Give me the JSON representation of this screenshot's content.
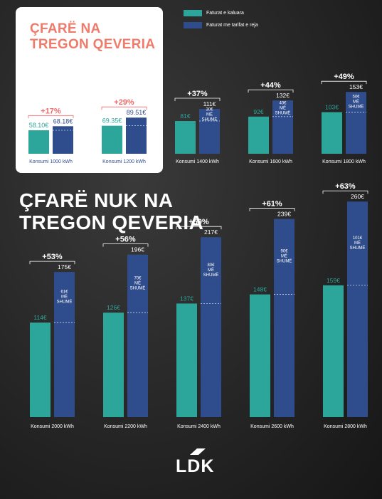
{
  "top_title": "ÇFARË NA TREGON QEVERIA",
  "bottom_title": "ÇFARË NUK NA TREGON QEVERIA",
  "logo_text": "LDK",
  "colors": {
    "teal": "#2ca69a",
    "blue": "#2f4d8c",
    "card": "#ffffff",
    "title_red": "#ef7b6b",
    "pct_red": "#ee6a6a"
  },
  "chart_data": {
    "type": "bar",
    "legend_placement": "top",
    "series": [
      {
        "name": "Faturat e kaluara",
        "color": "#2ca69a"
      },
      {
        "name": "Faturat me tarifat e reja",
        "color": "#2f4d8c"
      }
    ],
    "groups": [
      {
        "category": "Konsumi 1000 kWh",
        "old": 58.1,
        "new": 68.18,
        "old_label": "58.10€",
        "new_label": "68.18€",
        "increase": "+17%",
        "diff_label": "",
        "panel": "top"
      },
      {
        "category": "Konsumi 1200 kWh",
        "old": 69.35,
        "new": 89.51,
        "old_label": "69.35€",
        "new_label": "89.51€",
        "increase": "+29%",
        "diff_label": "",
        "panel": "top"
      },
      {
        "category": "Konsumi 1400 kWh",
        "old": 81,
        "new": 111,
        "old_label": "81€",
        "new_label": "111€",
        "increase": "+37%",
        "diff_label": "30€\nMË\nSHUMË",
        "panel": "top"
      },
      {
        "category": "Konsumi 1600 kWh",
        "old": 92,
        "new": 132,
        "old_label": "92€",
        "new_label": "132€",
        "increase": "+44%",
        "diff_label": "40€\nMË\nSHUMË",
        "panel": "top"
      },
      {
        "category": "Konsumi 1800 kWh",
        "old": 103,
        "new": 153,
        "old_label": "103€",
        "new_label": "153€",
        "increase": "+49%",
        "diff_label": "50€\nMË\nSHUMË",
        "panel": "top"
      },
      {
        "category": "Konsumi 2000 kWh",
        "old": 114,
        "new": 175,
        "old_label": "114€",
        "new_label": "175€",
        "increase": "+53%",
        "diff_label": "61€\nMË\nSHUMË",
        "panel": "bottom"
      },
      {
        "category": "Konsumi 2200 kWh",
        "old": 126,
        "new": 196,
        "old_label": "126€",
        "new_label": "196€",
        "increase": "+56%",
        "diff_label": "70€\nMË\nSHUMË",
        "panel": "bottom"
      },
      {
        "category": "Konsumi 2400 kWh",
        "old": 137,
        "new": 217,
        "old_label": "137€",
        "new_label": "217€",
        "increase": "+59%",
        "diff_label": "80€\nMË\nSHUMË",
        "panel": "bottom"
      },
      {
        "category": "Konsumi 2600 kWh",
        "old": 148,
        "new": 239,
        "old_label": "148€",
        "new_label": "239€",
        "increase": "+61%",
        "diff_label": "90€\nMË\nSHUMË",
        "panel": "bottom"
      },
      {
        "category": "Konsumi 2800 kWh",
        "old": 159,
        "new": 260,
        "old_label": "159€",
        "new_label": "260€",
        "increase": "+63%",
        "diff_label": "101€\nMË\nSHUMË",
        "panel": "bottom"
      }
    ]
  }
}
